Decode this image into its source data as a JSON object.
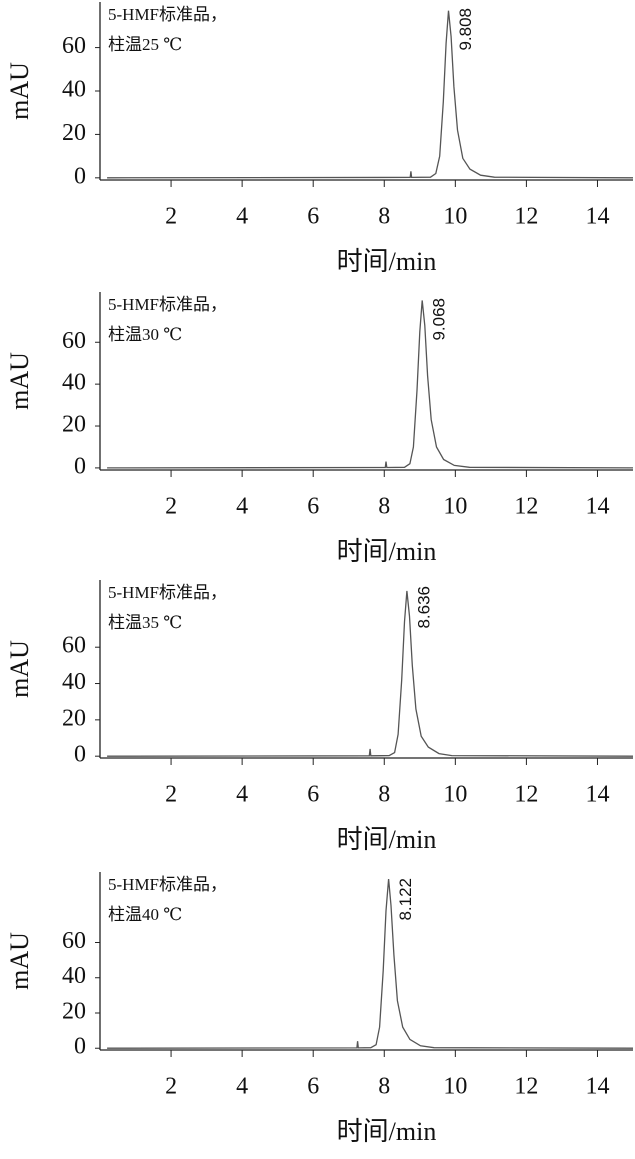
{
  "chart_data": [
    {
      "type": "line",
      "annotation": [
        "5-HMF标准品，",
        "柱温25 ℃"
      ],
      "ylabel": "mAU",
      "xlabel": "时间/min",
      "xlim": [
        0,
        15
      ],
      "xticks": [
        2,
        4,
        6,
        8,
        10,
        12,
        14
      ],
      "ylim": [
        -1,
        81
      ],
      "yticks": [
        0,
        20,
        40,
        60
      ],
      "peak_label": 9.808,
      "color": "#555555",
      "x": [
        0.2,
        8.73,
        8.75,
        8.77,
        9.3,
        9.45,
        9.56,
        9.66,
        9.74,
        9.808,
        9.88,
        9.96,
        10.06,
        10.21,
        10.41,
        10.71,
        11.1,
        15
      ],
      "y": [
        0,
        0.2,
        3,
        0.2,
        0.3,
        2,
        10,
        35,
        62,
        77,
        65,
        42,
        22,
        9,
        4,
        1.2,
        0.3,
        0
      ]
    },
    {
      "type": "line",
      "annotation": [
        "5-HMF标准品，",
        "柱温30 ℃"
      ],
      "ylabel": "mAU",
      "xlabel": "时间/min",
      "xlim": [
        0,
        15
      ],
      "xticks": [
        2,
        4,
        6,
        8,
        10,
        12,
        14
      ],
      "ylim": [
        -1,
        84
      ],
      "yticks": [
        0,
        20,
        40,
        60
      ],
      "peak_label": 9.068,
      "color": "#555555",
      "x": [
        0.2,
        8.03,
        8.05,
        8.07,
        8.57,
        8.72,
        8.82,
        8.92,
        9.0,
        9.068,
        9.14,
        9.22,
        9.32,
        9.47,
        9.67,
        9.97,
        10.4,
        15
      ],
      "y": [
        0,
        0.2,
        3,
        0.2,
        0.3,
        2,
        10,
        37,
        65,
        80,
        68,
        44,
        23,
        10,
        4,
        1.2,
        0.3,
        0
      ]
    },
    {
      "type": "line",
      "annotation": [
        "5-HMF标准品，",
        "柱温35 ℃"
      ],
      "ylabel": "mAU",
      "xlabel": "时间/min",
      "xlim": [
        0,
        15
      ],
      "xticks": [
        2,
        4,
        6,
        8,
        10,
        12,
        14
      ],
      "ylim": [
        -1,
        97
      ],
      "yticks": [
        0,
        20,
        40,
        60
      ],
      "peak_label": 8.636,
      "color": "#555555",
      "x": [
        0.2,
        7.58,
        7.6,
        7.62,
        8.14,
        8.29,
        8.39,
        8.49,
        8.57,
        8.636,
        8.71,
        8.79,
        8.89,
        9.04,
        9.24,
        9.54,
        9.9,
        15
      ],
      "y": [
        0,
        0.2,
        4,
        0.2,
        0.3,
        2,
        12,
        42,
        74,
        91,
        77,
        50,
        26,
        11,
        5,
        1.4,
        0.3,
        0
      ]
    },
    {
      "type": "line",
      "annotation": [
        "5-HMF标准品，",
        "柱温40 ℃"
      ],
      "ylabel": "mAU",
      "xlabel": "时间/min",
      "xlim": [
        0,
        15
      ],
      "xticks": [
        2,
        4,
        6,
        8,
        10,
        12,
        14
      ],
      "ylim": [
        -1,
        100
      ],
      "yticks": [
        0,
        20,
        40,
        60
      ],
      "peak_label": 8.122,
      "color": "#555555",
      "x": [
        0.2,
        7.23,
        7.25,
        7.27,
        7.62,
        7.77,
        7.87,
        7.97,
        8.05,
        8.122,
        8.19,
        8.27,
        8.37,
        8.52,
        8.72,
        9.02,
        9.4,
        15
      ],
      "y": [
        0,
        0.2,
        4,
        0.2,
        0.3,
        2,
        12,
        44,
        78,
        96,
        81,
        53,
        27,
        12,
        5,
        1.4,
        0.3,
        0
      ]
    }
  ]
}
